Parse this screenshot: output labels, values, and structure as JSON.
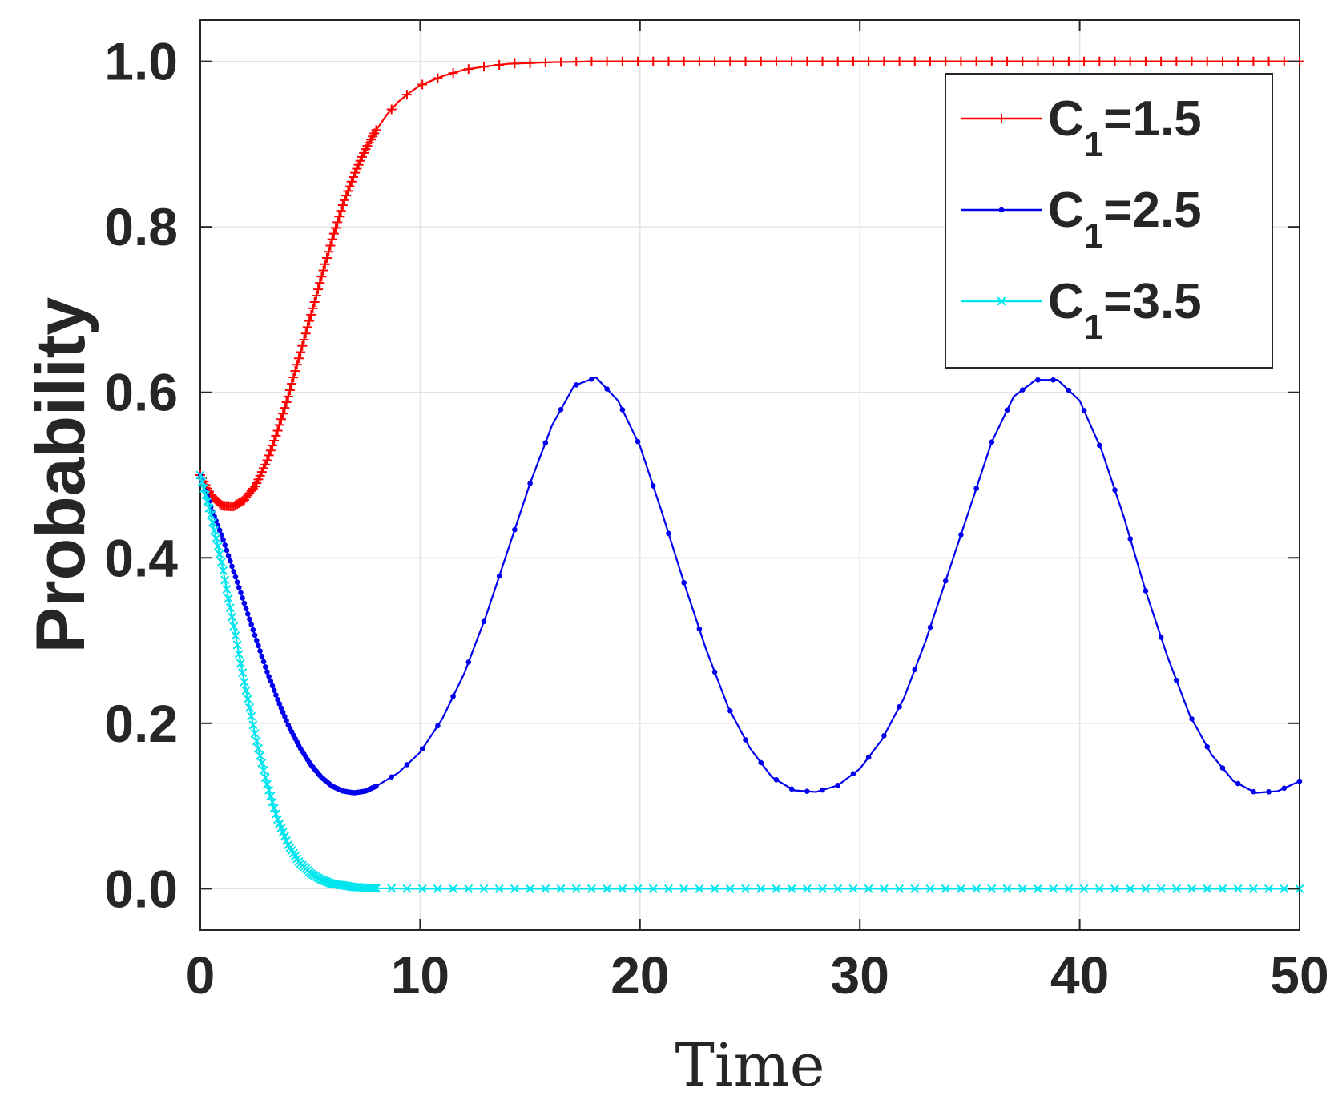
{
  "chart_data": {
    "type": "line",
    "title": "",
    "xlabel": "Time",
    "ylabel": "Probability",
    "xlim": [
      0,
      50
    ],
    "ylim": [
      -0.05,
      1.05
    ],
    "xticks": [
      "0",
      "10",
      "20",
      "30",
      "40",
      "50"
    ],
    "xtick_values": [
      0,
      10,
      20,
      30,
      40,
      50
    ],
    "yticks": [
      "0.0",
      "0.2",
      "0.4",
      "0.6",
      "0.8",
      "1.0"
    ],
    "ytick_values": [
      0.0,
      0.2,
      0.4,
      0.6,
      0.8,
      1.0
    ],
    "grid": true,
    "legend_position": "top-right",
    "series": [
      {
        "name": "C1=1.5",
        "label_main": "C",
        "label_sub": "1",
        "label_tail": "=1.5",
        "color": "#ff0000",
        "marker": "plus",
        "points": [
          [
            0,
            0.5
          ],
          [
            0.5,
            0.475
          ],
          [
            1,
            0.463
          ],
          [
            1.5,
            0.462
          ],
          [
            2,
            0.47
          ],
          [
            2.5,
            0.487
          ],
          [
            3,
            0.515
          ],
          [
            3.5,
            0.552
          ],
          [
            4,
            0.595
          ],
          [
            4.5,
            0.643
          ],
          [
            5,
            0.69
          ],
          [
            5.5,
            0.738
          ],
          [
            6,
            0.785
          ],
          [
            6.5,
            0.828
          ],
          [
            7,
            0.863
          ],
          [
            7.5,
            0.893
          ],
          [
            8,
            0.917
          ],
          [
            8.5,
            0.936
          ],
          [
            9,
            0.951
          ],
          [
            9.5,
            0.962
          ],
          [
            10,
            0.971
          ],
          [
            11,
            0.982
          ],
          [
            12,
            0.99
          ],
          [
            13,
            0.994
          ],
          [
            14,
            0.997
          ],
          [
            15,
            0.998
          ],
          [
            16,
            0.999
          ],
          [
            18,
            1.0
          ],
          [
            20,
            1.0
          ],
          [
            25,
            1.0
          ],
          [
            30,
            1.0
          ],
          [
            35,
            1.0
          ],
          [
            40,
            1.0
          ],
          [
            45,
            1.0
          ],
          [
            50,
            1.0
          ]
        ]
      },
      {
        "name": "C1=2.5",
        "label_main": "C",
        "label_sub": "1",
        "label_tail": "=2.5",
        "color": "#0000ee",
        "marker": "dot",
        "points": [
          [
            0,
            0.5
          ],
          [
            0.5,
            0.46
          ],
          [
            1,
            0.425
          ],
          [
            1.5,
            0.385
          ],
          [
            2,
            0.345
          ],
          [
            2.5,
            0.305
          ],
          [
            3,
            0.265
          ],
          [
            3.5,
            0.23
          ],
          [
            4,
            0.198
          ],
          [
            4.5,
            0.172
          ],
          [
            5,
            0.151
          ],
          [
            5.5,
            0.135
          ],
          [
            6,
            0.124
          ],
          [
            6.5,
            0.118
          ],
          [
            7,
            0.116
          ],
          [
            7.5,
            0.118
          ],
          [
            8,
            0.124
          ],
          [
            9,
            0.14
          ],
          [
            10,
            0.165
          ],
          [
            11,
            0.205
          ],
          [
            12,
            0.26
          ],
          [
            13,
            0.33
          ],
          [
            14,
            0.41
          ],
          [
            15,
            0.49
          ],
          [
            16,
            0.56
          ],
          [
            17,
            0.608
          ],
          [
            18,
            0.618
          ],
          [
            19,
            0.59
          ],
          [
            20,
            0.535
          ],
          [
            21,
            0.455
          ],
          [
            22,
            0.37
          ],
          [
            23,
            0.29
          ],
          [
            24,
            0.22
          ],
          [
            25,
            0.17
          ],
          [
            26,
            0.135
          ],
          [
            27,
            0.119
          ],
          [
            28,
            0.117
          ],
          [
            29,
            0.125
          ],
          [
            30,
            0.145
          ],
          [
            31,
            0.18
          ],
          [
            32,
            0.23
          ],
          [
            33,
            0.3
          ],
          [
            34,
            0.38
          ],
          [
            35,
            0.46
          ],
          [
            36,
            0.54
          ],
          [
            37,
            0.595
          ],
          [
            38,
            0.615
          ],
          [
            39,
            0.615
          ],
          [
            40,
            0.59
          ],
          [
            41,
            0.53
          ],
          [
            42,
            0.45
          ],
          [
            43,
            0.36
          ],
          [
            44,
            0.28
          ],
          [
            45,
            0.21
          ],
          [
            46,
            0.162
          ],
          [
            47,
            0.13
          ],
          [
            48,
            0.116
          ],
          [
            49,
            0.118
          ],
          [
            50,
            0.13
          ]
        ]
      },
      {
        "name": "C1=3.5",
        "label_main": "C",
        "label_sub": "1",
        "label_tail": "=3.5",
        "color": "#00e5ee",
        "marker": "x",
        "points": [
          [
            0,
            0.5
          ],
          [
            0.5,
            0.45
          ],
          [
            1,
            0.39
          ],
          [
            1.5,
            0.32
          ],
          [
            2,
            0.25
          ],
          [
            2.5,
            0.185
          ],
          [
            3,
            0.13
          ],
          [
            3.5,
            0.085
          ],
          [
            4,
            0.053
          ],
          [
            4.5,
            0.032
          ],
          [
            5,
            0.019
          ],
          [
            5.5,
            0.011
          ],
          [
            6,
            0.006
          ],
          [
            7,
            0.002
          ],
          [
            8,
            0.0005
          ],
          [
            10,
            0.0
          ],
          [
            20,
            0.0
          ],
          [
            30,
            0.0
          ],
          [
            40,
            0.0
          ],
          [
            50,
            0.0
          ]
        ]
      }
    ]
  }
}
